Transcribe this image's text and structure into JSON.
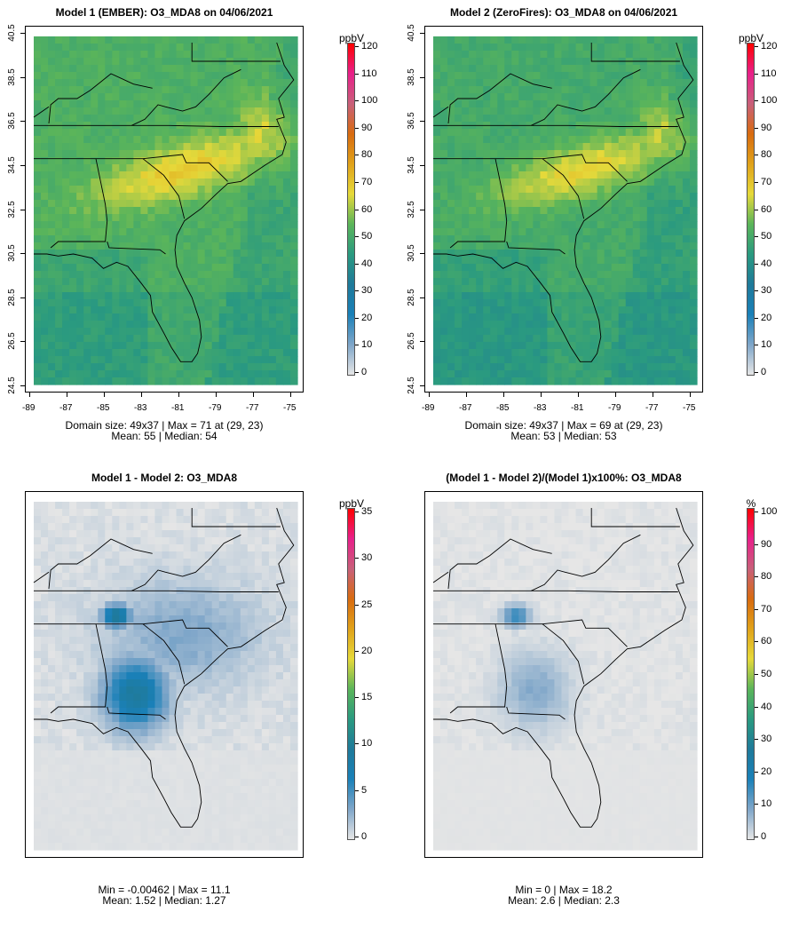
{
  "panels": [
    {
      "id": "p1",
      "title": "Model 1 (EMBER): O3_MDA8 on 04/06/2021",
      "show_axes": true,
      "stats_line1": "Domain size: 49x37 | Max = 71 at (29, 23)",
      "stats_line2": "Mean: 55 |  Median: 54",
      "colorbar": {
        "unit": "ppbV",
        "ticks": [
          "0",
          "10",
          "20",
          "30",
          "40",
          "50",
          "60",
          "70",
          "80",
          "90",
          "100",
          "110",
          "120"
        ],
        "range": [
          0,
          120
        ]
      },
      "field": {
        "kind": "absolute",
        "base": 53,
        "hot": 70
      }
    },
    {
      "id": "p2",
      "title": "Model 2 (ZeroFires): O3_MDA8 on 04/06/2021",
      "show_axes": true,
      "stats_line1": "Domain size: 49x37 | Max = 69 at (29, 23)",
      "stats_line2": "Mean: 53 |  Median: 53",
      "colorbar": {
        "unit": "ppbV",
        "ticks": [
          "0",
          "10",
          "20",
          "30",
          "40",
          "50",
          "60",
          "70",
          "80",
          "90",
          "100",
          "110",
          "120"
        ],
        "range": [
          0,
          120
        ]
      },
      "field": {
        "kind": "absolute",
        "base": 51,
        "hot": 68
      }
    },
    {
      "id": "p3",
      "title": "Model 1 - Model 2: O3_MDA8",
      "show_axes": false,
      "stats_line1": "Min = -0.00462 | Max = 11.1",
      "stats_line2": "Mean: 1.52 |  Median: 1.27",
      "colorbar": {
        "unit": "ppbV",
        "ticks": [
          "0",
          "5",
          "10",
          "15",
          "20",
          "25",
          "30",
          "35"
        ],
        "range": [
          0,
          35
        ]
      },
      "field": {
        "kind": "diff",
        "max": 11.1
      }
    },
    {
      "id": "p4",
      "title": "(Model 1 - Model 2)/(Model 1)x100%: O3_MDA8",
      "show_axes": false,
      "stats_line1": "Min = 0 | Max = 18.2",
      "stats_line2": "Mean: 2.6 |  Median: 2.3",
      "colorbar": {
        "unit": "%",
        "ticks": [
          "0",
          "10",
          "20",
          "30",
          "40",
          "50",
          "60",
          "70",
          "80",
          "90",
          "100"
        ],
        "range": [
          0,
          100
        ]
      },
      "field": {
        "kind": "pct",
        "max": 18.2
      }
    }
  ],
  "x_axis_ticks": [
    "-89",
    "-87",
    "-85",
    "-83",
    "-81",
    "-79",
    "-77",
    "-75"
  ],
  "y_axis_ticks": [
    "24.5",
    "26.5",
    "28.5",
    "30.5",
    "32.5",
    "34.5",
    "36.5",
    "38.5",
    "40.5"
  ],
  "colors": {
    "colorbar_stops": [
      "#e6e6e6",
      "#7fa6c9",
      "#1a80b8",
      "#1f7a9a",
      "#2a9a80",
      "#5bb55a",
      "#e6d93a",
      "#e0a21a",
      "#d86b10",
      "#c8607a",
      "#e8208a",
      "#ff0000"
    ],
    "border": "#000000"
  }
}
